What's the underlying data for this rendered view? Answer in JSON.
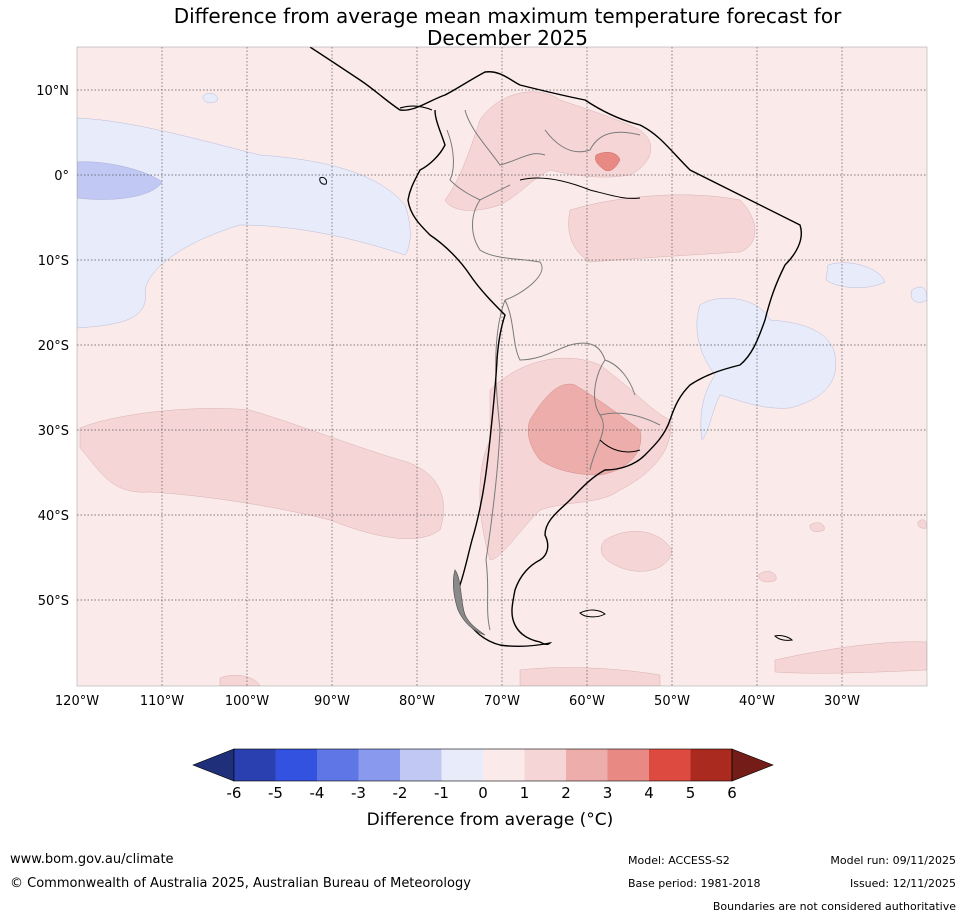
{
  "title": {
    "line1": "Difference from average mean maximum temperature forecast for",
    "line2": "December 2025"
  },
  "map": {
    "lat_labels": [
      "10°N",
      "0°",
      "10°S",
      "20°S",
      "30°S",
      "40°S",
      "50°S"
    ],
    "lon_labels": [
      "120°W",
      "110°W",
      "100°W",
      "90°W",
      "80°W",
      "70°W",
      "60°W",
      "50°W",
      "40°W",
      "30°W"
    ]
  },
  "colorbar": {
    "ticks": [
      "-6",
      "-5",
      "-4",
      "-3",
      "-2",
      "-1",
      "0",
      "1",
      "2",
      "3",
      "4",
      "5",
      "6"
    ],
    "colors": [
      "#1f2f7a",
      "#2a40b0",
      "#3352e0",
      "#5f77e6",
      "#8899ee",
      "#c1c8f3",
      "#e8ebfa",
      "#fbeaea",
      "#f5d5d5",
      "#edadaa",
      "#e88984",
      "#dd4a40",
      "#aa2a20",
      "#731c18"
    ],
    "label": "Difference from average (°C)"
  },
  "footer": {
    "website": "www.bom.gov.au/climate",
    "copyright": "© Commonwealth of Australia 2025, Australian Bureau of Meteorology",
    "model": "Model: ACCESS-S2",
    "base_period": "Base period: 1981-2018",
    "model_run": "Model run: 09/11/2025",
    "issued": "Issued: 12/11/2025",
    "disclaimer": "Boundaries are not considered authoritative"
  }
}
